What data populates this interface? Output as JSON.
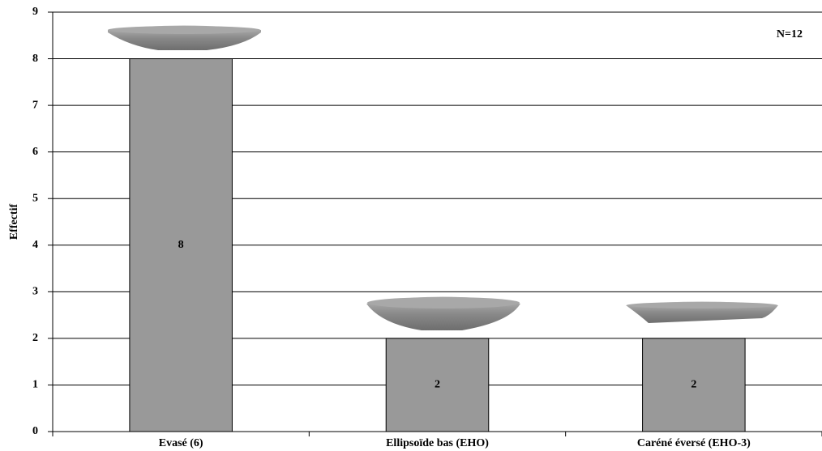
{
  "chart_data": {
    "type": "bar",
    "y_label": "Effectif",
    "annotation": "N=12",
    "categories": [
      "Evasé (6)",
      "Ellipsoïde bas (EHO)",
      "Caréné éversé (EHO-3)"
    ],
    "values": [
      8,
      2,
      2
    ],
    "color": "#999999",
    "ylim": [
      0,
      9
    ],
    "yticks": [
      0,
      1,
      2,
      3,
      4,
      5,
      6,
      7,
      8,
      9
    ],
    "grid": true
  }
}
